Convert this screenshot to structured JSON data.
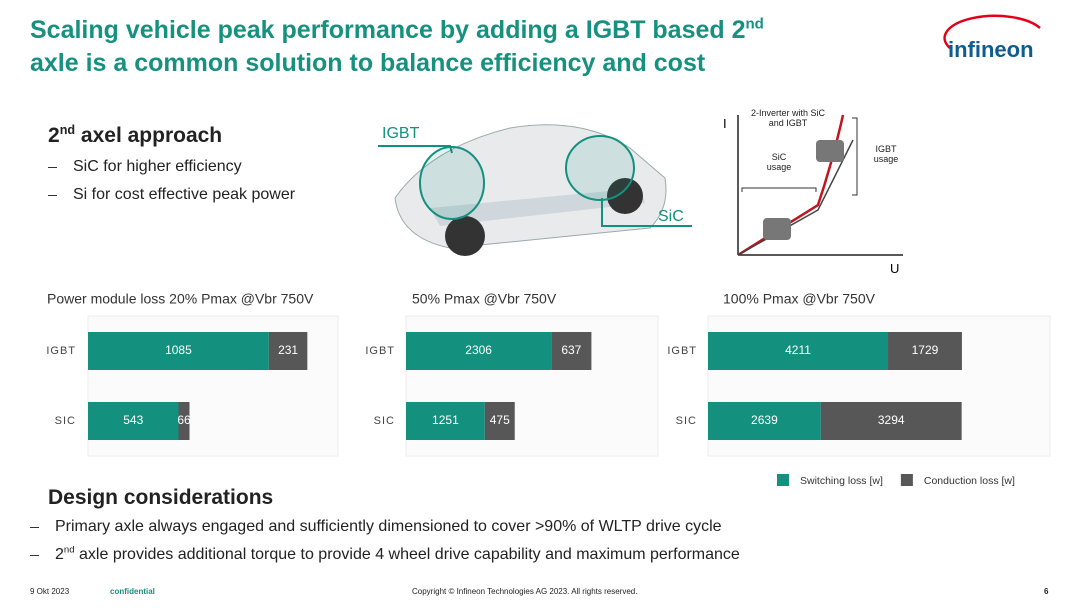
{
  "header": {
    "title": [
      "Scaling vehicle peak performance by adding a IGBT based 2",
      "nd",
      "axle is a common solution to balance efficiency and cost"
    ],
    "logo": "infineon"
  },
  "approach": {
    "heading": [
      "2",
      "nd",
      " axel approach"
    ],
    "bullets": [
      "SiC for higher efficiency",
      "Si for cost effective peak power"
    ]
  },
  "car_figure": {
    "labels": [
      "IGBT",
      "SiC"
    ]
  },
  "iu_graph": {
    "y_label": "I",
    "x_label": "U",
    "annotations": [
      "2-Inverter with SiC and IGBT",
      "SiC usage",
      "IGBT usage"
    ]
  },
  "chart_data": [
    {
      "type": "bar",
      "orientation": "horizontal",
      "stacked": true,
      "title": "Power module loss 20% Pmax @Vbr 750V",
      "categories": [
        "IGBT",
        "SIC"
      ],
      "xlim": [
        0,
        1500
      ],
      "series": [
        {
          "name": "Switching loss [w]",
          "color": "#14907f",
          "values": [
            1085,
            543
          ]
        },
        {
          "name": "Conduction loss [w]",
          "color": "#575757",
          "values": [
            231,
            66
          ]
        }
      ]
    },
    {
      "type": "bar",
      "orientation": "horizontal",
      "stacked": true,
      "title": "50% Pmax @Vbr 750V",
      "categories": [
        "IGBT",
        "SIC"
      ],
      "xlim": [
        0,
        4000
      ],
      "series": [
        {
          "color": "#14907f",
          "values": [
            2306,
            1251
          ]
        },
        {
          "color": "#575757",
          "values": [
            637,
            475
          ]
        }
      ]
    },
    {
      "type": "bar",
      "orientation": "horizontal",
      "stacked": true,
      "title": "100% Pmax @Vbr 750V",
      "categories": [
        "IGBT",
        "SIC"
      ],
      "xlim": [
        0,
        8000
      ],
      "series": [
        {
          "color": "#14907f",
          "values": [
            4211,
            2639
          ]
        },
        {
          "color": "#575757",
          "values": [
            1729,
            3294
          ]
        }
      ]
    }
  ],
  "design": {
    "heading": "Design considerations",
    "bullets": [
      [
        "Primary axle always engaged and sufficiently dimensioned to cover >90% of WLTP drive cycle"
      ],
      [
        "2",
        "nd",
        " axle provides additional torque to provide 4 wheel drive capability and maximum performance"
      ]
    ]
  },
  "footer": {
    "date": "9 Okt 2023",
    "classification": "confidential",
    "copyright": "Copyright © Infineon Technologies AG 2023. All rights reserved.",
    "page": "6"
  }
}
